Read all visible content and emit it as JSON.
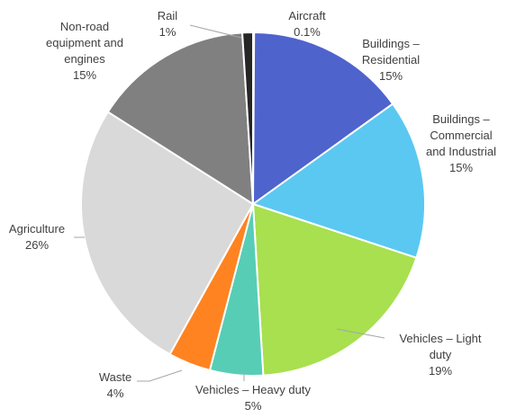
{
  "chart_data": {
    "type": "pie",
    "title": "",
    "slices": [
      {
        "label_lines": [
          "Aircraft",
          "0.1%"
        ],
        "value": 0.1,
        "color": "#202020"
      },
      {
        "label_lines": [
          "Buildings –",
          "Residential",
          "15%"
        ],
        "value": 15,
        "color": "#4F63CC"
      },
      {
        "label_lines": [
          "Buildings –",
          "Commercial",
          "and Industrial",
          "15%"
        ],
        "value": 15,
        "color": "#5BC8F1"
      },
      {
        "label_lines": [
          "Vehicles – Light",
          "duty",
          "19%"
        ],
        "value": 19,
        "color": "#A8E04F"
      },
      {
        "label_lines": [
          "Vehicles – Heavy duty",
          "5%"
        ],
        "value": 5,
        "color": "#57CDB6"
      },
      {
        "label_lines": [
          "Waste",
          "4%"
        ],
        "value": 4,
        "color": "#FF8321"
      },
      {
        "label_lines": [
          "Agriculture",
          "26%"
        ],
        "value": 26,
        "color": "#D9D9D9"
      },
      {
        "label_lines": [
          "Non-road",
          "equipment and",
          "engines",
          "15%"
        ],
        "value": 15,
        "color": "#808080"
      },
      {
        "label_lines": [
          "Rail",
          "1%"
        ],
        "value": 1,
        "color": "#262626"
      }
    ],
    "legend": "none",
    "start_direction": "top",
    "direction": "clockwise"
  }
}
